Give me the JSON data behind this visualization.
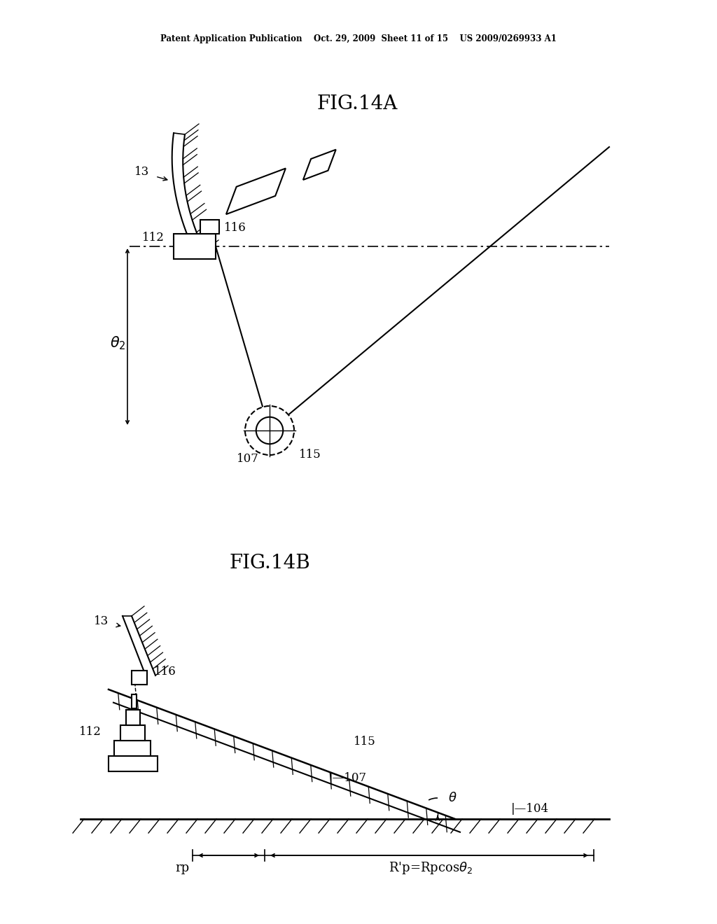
{
  "bg_color": "#ffffff",
  "header_text": "Patent Application Publication    Oct. 29, 2009  Sheet 11 of 15    US 2009/0269933 A1",
  "fig14a_title": "FIG.14A",
  "fig14b_title": "FIG.14B",
  "text_color": "#000000",
  "line_color": "#000000"
}
